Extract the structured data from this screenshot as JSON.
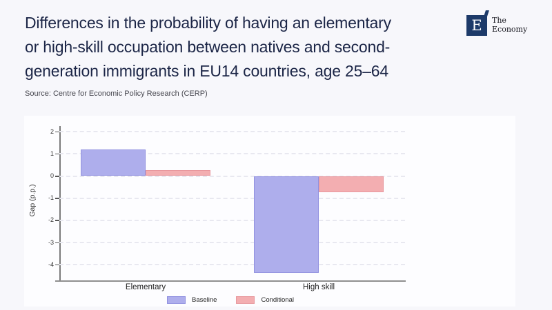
{
  "header": {
    "title_lines": [
      "Differences in the probability of having an elementary",
      "or high-skill occupation between natives and second-",
      "generation immigrants in EU14 countries, age 25–64"
    ],
    "logo": {
      "letter": "E",
      "name_line1": "The",
      "name_line2": "Economy"
    },
    "source": "Source: Centre for Economic Policy Research (CERP)"
  },
  "chart_data": {
    "type": "bar",
    "categories": [
      "Elementary",
      "High skill"
    ],
    "series": [
      {
        "name": "Baseline",
        "values": [
          1.2,
          -4.35
        ],
        "color": "#aeaeec",
        "border": "#9191e0"
      },
      {
        "name": "Conditional",
        "values": [
          0.27,
          -0.73
        ],
        "color": "#f3aeb1",
        "border": "#e8989e"
      }
    ],
    "title": "",
    "xlabel": "",
    "ylabel": "Gap (p.p.)",
    "yticks": [
      2,
      1,
      0,
      -1,
      -2,
      -3,
      -4
    ],
    "ylim": [
      -4.7,
      2.3
    ],
    "grid": "horizontal-dashed",
    "legend_position": "bottom-center"
  }
}
